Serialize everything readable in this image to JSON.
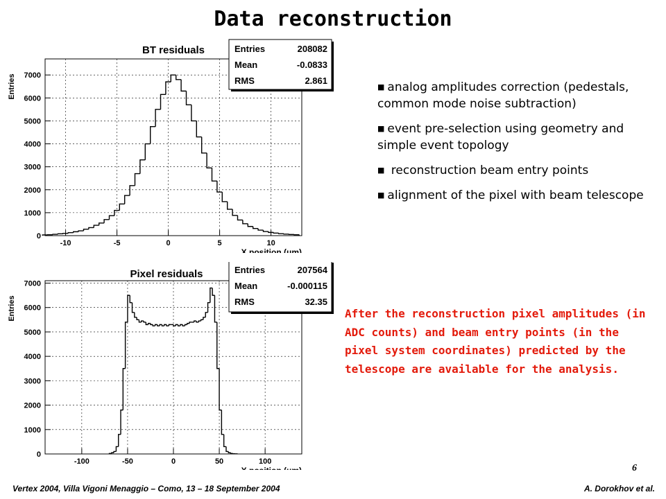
{
  "slide": {
    "title": "Data reconstruction",
    "bullets": [
      "analog amplitudes correction (pedestals, common mode noise subtraction)",
      "event pre-selection using geometry and simple event topology",
      " reconstruction beam entry points",
      "alignment of the pixel with beam telescope"
    ],
    "bullet_marker": "■",
    "note": "After the reconstruction pixel amplitudes (in ADC counts) and  beam entry points (in the pixel system coordinates) predicted by the telescope are available for the analysis.",
    "note_color": "#e31a0b",
    "page_number": "6",
    "footer_left": "Vertex 2004, Villa Vigoni  Menaggio – Como, 13 – 18 September 2004",
    "footer_right": "A. Dorokhov et al."
  },
  "chart_data": [
    {
      "type": "bar",
      "style": "step-histogram",
      "title": "BT residuals",
      "xlabel": "X position (μm)",
      "ylabel": "Entries",
      "xlim": [
        -12,
        13
      ],
      "ylim": [
        0,
        7700
      ],
      "xticks": [
        -10,
        -5,
        0,
        5,
        10
      ],
      "yticks": [
        0,
        1000,
        2000,
        3000,
        4000,
        5000,
        6000,
        7000
      ],
      "grid": true,
      "stats": [
        {
          "label": "Entries",
          "value": "208082"
        },
        {
          "label": "Mean",
          "value": "-0.0833"
        },
        {
          "label": "RMS",
          "value": "2.861"
        }
      ],
      "bin_width": 0.5,
      "bin_centers": [
        -12,
        -11.5,
        -11,
        -10.5,
        -10,
        -9.5,
        -9,
        -8.5,
        -8,
        -7.5,
        -7,
        -6.5,
        -6,
        -5.5,
        -5,
        -4.5,
        -4,
        -3.5,
        -3,
        -2.5,
        -2,
        -1.5,
        -1,
        -0.5,
        0,
        0.5,
        1,
        1.5,
        2,
        2.5,
        3,
        3.5,
        4,
        4.5,
        5,
        5.5,
        6,
        6.5,
        7,
        7.5,
        8,
        8.5,
        9,
        9.5,
        10,
        10.5,
        11,
        11.5,
        12,
        12.5
      ],
      "values": [
        30,
        40,
        60,
        80,
        100,
        130,
        170,
        210,
        280,
        350,
        450,
        550,
        700,
        870,
        1100,
        1380,
        1750,
        2180,
        2700,
        3300,
        4000,
        4750,
        5500,
        6150,
        6700,
        7000,
        6800,
        6300,
        5700,
        5000,
        4300,
        3600,
        2950,
        2380,
        1900,
        1480,
        1150,
        880,
        680,
        520,
        400,
        310,
        240,
        180,
        140,
        110,
        85,
        65,
        50,
        40
      ]
    },
    {
      "type": "bar",
      "style": "step-histogram",
      "title": "Pixel residuals",
      "xlabel": "X position (μm)",
      "ylabel": "Entries",
      "xlim": [
        -140,
        140
      ],
      "ylim": [
        0,
        7100
      ],
      "xticks": [
        -100,
        -50,
        0,
        50,
        100
      ],
      "yticks": [
        0,
        1000,
        2000,
        3000,
        4000,
        5000,
        6000,
        7000
      ],
      "grid": true,
      "stats": [
        {
          "label": "Entries",
          "value": "207564"
        },
        {
          "label": "Mean",
          "value": "-0.000115"
        },
        {
          "label": "RMS",
          "value": "32.35"
        }
      ],
      "bin_width": 2.5,
      "bin_centers": [
        -68.75,
        -66.25,
        -63.75,
        -61.25,
        -58.75,
        -56.25,
        -53.75,
        -51.25,
        -48.75,
        -46.25,
        -43.75,
        -41.25,
        -38.75,
        -36.25,
        -33.75,
        -31.25,
        -28.75,
        -26.25,
        -23.75,
        -21.25,
        -18.75,
        -16.25,
        -13.75,
        -11.25,
        -8.75,
        -6.25,
        -3.75,
        -1.25,
        1.25,
        3.75,
        6.25,
        8.75,
        11.25,
        13.75,
        16.25,
        18.75,
        21.25,
        23.75,
        26.25,
        28.75,
        31.25,
        33.75,
        36.25,
        38.75,
        41.25,
        43.75,
        46.25,
        48.75,
        51.25,
        53.75,
        56.25,
        58.75,
        61.25,
        63.75,
        66.25,
        68.75
      ],
      "values": [
        20,
        50,
        100,
        300,
        800,
        1800,
        3500,
        5400,
        6500,
        6200,
        5800,
        5600,
        5500,
        5400,
        5450,
        5400,
        5300,
        5350,
        5300,
        5250,
        5300,
        5250,
        5300,
        5250,
        5300,
        5250,
        5300,
        5300,
        5250,
        5300,
        5250,
        5300,
        5250,
        5300,
        5350,
        5400,
        5400,
        5450,
        5400,
        5450,
        5500,
        5600,
        5800,
        6200,
        6800,
        6500,
        5400,
        3500,
        1800,
        800,
        300,
        100,
        50,
        20,
        10,
        5
      ]
    }
  ]
}
